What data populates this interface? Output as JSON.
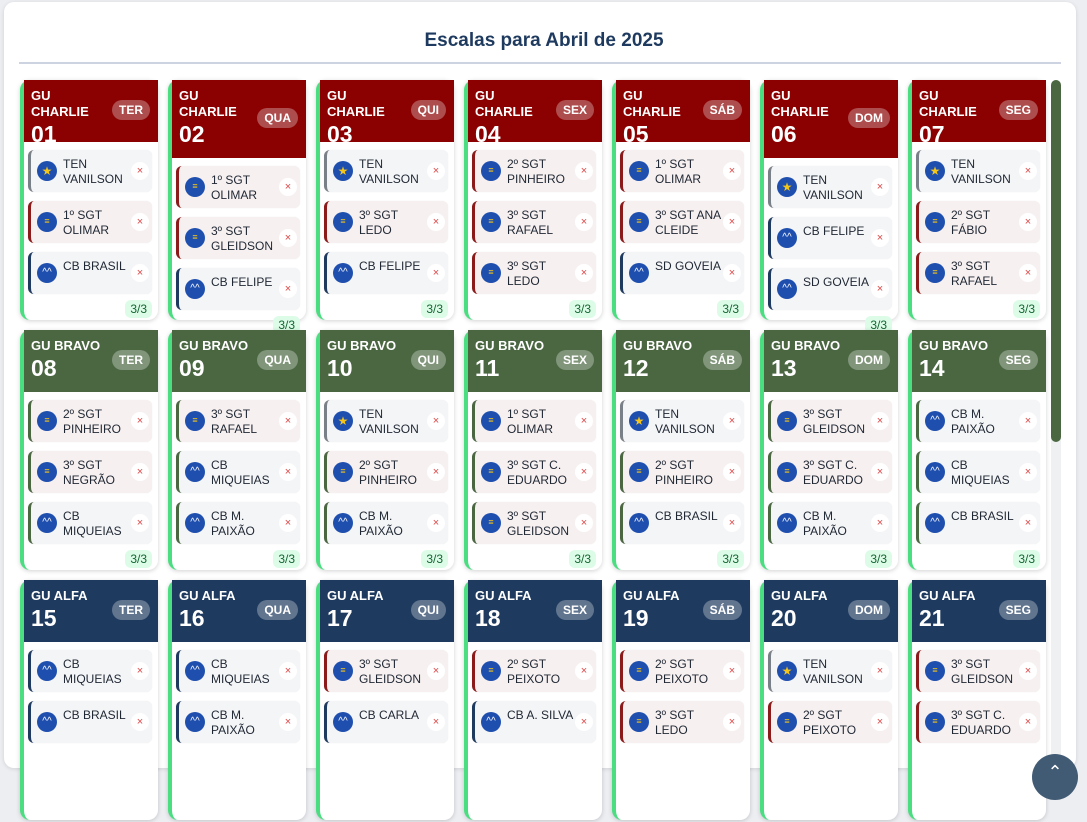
{
  "page_title": "Escalas para Abril de 2025",
  "weeks": [
    {
      "rowTop": 80,
      "days": [
        {
          "unit": "GU CHARLIE",
          "day": "01",
          "weekday": "TER",
          "tall": false,
          "count": "3/3",
          "entries": [
            {
              "name": "TEN VANILSON",
              "rank": "ten"
            },
            {
              "name": "1º SGT OLIMAR",
              "rank": "sgt"
            },
            {
              "name": "CB BRASIL",
              "rank": "cb"
            }
          ]
        },
        {
          "unit": "GU CHARLIE",
          "day": "02",
          "weekday": "QUA",
          "tall": true,
          "count": "3/3",
          "entries": [
            {
              "name": "1º SGT OLIMAR",
              "rank": "sgt"
            },
            {
              "name": "3º SGT GLEIDSON",
              "rank": "sgt"
            },
            {
              "name": "CB FELIPE",
              "rank": "cb"
            }
          ]
        },
        {
          "unit": "GU CHARLIE",
          "day": "03",
          "weekday": "QUI",
          "tall": false,
          "count": "3/3",
          "entries": [
            {
              "name": "TEN VANILSON",
              "rank": "ten"
            },
            {
              "name": "3º SGT LEDO",
              "rank": "sgt"
            },
            {
              "name": "CB FELIPE",
              "rank": "cb"
            }
          ]
        },
        {
          "unit": "GU CHARLIE",
          "day": "04",
          "weekday": "SEX",
          "tall": false,
          "count": "3/3",
          "entries": [
            {
              "name": "2º SGT PINHEIRO",
              "rank": "sgt"
            },
            {
              "name": "3º SGT RAFAEL",
              "rank": "sgt"
            },
            {
              "name": "3º SGT LEDO",
              "rank": "sgt"
            }
          ]
        },
        {
          "unit": "GU CHARLIE",
          "day": "05",
          "weekday": "SÁB",
          "tall": false,
          "count": "3/3",
          "entries": [
            {
              "name": "1º SGT OLIMAR",
              "rank": "sgt"
            },
            {
              "name": "3º SGT ANA CLEIDE",
              "rank": "sgt"
            },
            {
              "name": "SD GOVEIA",
              "rank": "cb"
            }
          ]
        },
        {
          "unit": "GU CHARLIE",
          "day": "06",
          "weekday": "DOM",
          "tall": true,
          "count": "3/3",
          "entries": [
            {
              "name": "TEN VANILSON",
              "rank": "ten"
            },
            {
              "name": "CB FELIPE",
              "rank": "cb"
            },
            {
              "name": "SD GOVEIA",
              "rank": "cb"
            }
          ]
        },
        {
          "unit": "GU CHARLIE",
          "day": "07",
          "weekday": "SEG",
          "tall": false,
          "count": "3/3",
          "entries": [
            {
              "name": "TEN VANILSON",
              "rank": "ten"
            },
            {
              "name": "2º SGT FÁBIO",
              "rank": "sgt"
            },
            {
              "name": "3º SGT RAFAEL",
              "rank": "sgt"
            }
          ]
        }
      ]
    },
    {
      "rowTop": 330,
      "days": [
        {
          "unit": "GU BRAVO",
          "day": "08",
          "weekday": "TER",
          "tall": false,
          "count": "3/3",
          "entries": [
            {
              "name": "2º SGT PINHEIRO",
              "rank": "sgt"
            },
            {
              "name": "3º SGT NEGRÃO",
              "rank": "sgt"
            },
            {
              "name": "CB MIQUEIAS",
              "rank": "cb"
            }
          ]
        },
        {
          "unit": "GU BRAVO",
          "day": "09",
          "weekday": "QUA",
          "tall": false,
          "count": "3/3",
          "entries": [
            {
              "name": "3º SGT RAFAEL",
              "rank": "sgt"
            },
            {
              "name": "CB MIQUEIAS",
              "rank": "cb"
            },
            {
              "name": "CB M. PAIXÃO",
              "rank": "cb"
            }
          ]
        },
        {
          "unit": "GU BRAVO",
          "day": "10",
          "weekday": "QUI",
          "tall": false,
          "count": "3/3",
          "entries": [
            {
              "name": "TEN VANILSON",
              "rank": "ten"
            },
            {
              "name": "2º SGT PINHEIRO",
              "rank": "sgt"
            },
            {
              "name": "CB M. PAIXÃO",
              "rank": "cb"
            }
          ]
        },
        {
          "unit": "GU BRAVO",
          "day": "11",
          "weekday": "SEX",
          "tall": false,
          "count": "3/3",
          "entries": [
            {
              "name": "1º SGT OLIMAR",
              "rank": "sgt"
            },
            {
              "name": "3º SGT C. EDUARDO",
              "rank": "sgt"
            },
            {
              "name": "3º SGT GLEIDSON",
              "rank": "sgt"
            }
          ]
        },
        {
          "unit": "GU BRAVO",
          "day": "12",
          "weekday": "SÁB",
          "tall": false,
          "count": "3/3",
          "entries": [
            {
              "name": "TEN VANILSON",
              "rank": "ten"
            },
            {
              "name": "2º SGT PINHEIRO",
              "rank": "sgt"
            },
            {
              "name": "CB BRASIL",
              "rank": "cb"
            }
          ]
        },
        {
          "unit": "GU BRAVO",
          "day": "13",
          "weekday": "DOM",
          "tall": false,
          "count": "3/3",
          "entries": [
            {
              "name": "3º SGT GLEIDSON",
              "rank": "sgt"
            },
            {
              "name": "3º SGT C. EDUARDO",
              "rank": "sgt"
            },
            {
              "name": "CB M. PAIXÃO",
              "rank": "cb"
            }
          ]
        },
        {
          "unit": "GU BRAVO",
          "day": "14",
          "weekday": "SEG",
          "tall": false,
          "count": "3/3",
          "entries": [
            {
              "name": "CB M. PAIXÃO",
              "rank": "cb"
            },
            {
              "name": "CB MIQUEIAS",
              "rank": "cb"
            },
            {
              "name": "CB BRASIL",
              "rank": "cb"
            }
          ]
        }
      ]
    },
    {
      "rowTop": 580,
      "days": [
        {
          "unit": "GU ALFA",
          "day": "15",
          "weekday": "TER",
          "tall": false,
          "count": "",
          "entries": [
            {
              "name": "CB MIQUEIAS",
              "rank": "cb"
            },
            {
              "name": "CB BRASIL",
              "rank": "cb"
            }
          ]
        },
        {
          "unit": "GU ALFA",
          "day": "16",
          "weekday": "QUA",
          "tall": false,
          "count": "",
          "entries": [
            {
              "name": "CB MIQUEIAS",
              "rank": "cb"
            },
            {
              "name": "CB M. PAIXÃO",
              "rank": "cb"
            }
          ]
        },
        {
          "unit": "GU ALFA",
          "day": "17",
          "weekday": "QUI",
          "tall": false,
          "count": "",
          "entries": [
            {
              "name": "3º SGT GLEIDSON",
              "rank": "sgt"
            },
            {
              "name": "CB CARLA",
              "rank": "cb"
            }
          ]
        },
        {
          "unit": "GU ALFA",
          "day": "18",
          "weekday": "SEX",
          "tall": false,
          "count": "",
          "entries": [
            {
              "name": "2º SGT PEIXOTO",
              "rank": "sgt"
            },
            {
              "name": "CB A. SILVA",
              "rank": "cb"
            }
          ]
        },
        {
          "unit": "GU ALFA",
          "day": "19",
          "weekday": "SÁB",
          "tall": false,
          "count": "",
          "entries": [
            {
              "name": "2º SGT PEIXOTO",
              "rank": "sgt"
            },
            {
              "name": "3º SGT LEDO",
              "rank": "sgt"
            }
          ]
        },
        {
          "unit": "GU ALFA",
          "day": "20",
          "weekday": "DOM",
          "tall": false,
          "count": "",
          "entries": [
            {
              "name": "TEN VANILSON",
              "rank": "ten"
            },
            {
              "name": "2º SGT PEIXOTO",
              "rank": "sgt"
            }
          ]
        },
        {
          "unit": "GU ALFA",
          "day": "21",
          "weekday": "SEG",
          "tall": false,
          "count": "",
          "entries": [
            {
              "name": "3º SGT GLEIDSON",
              "rank": "sgt"
            },
            {
              "name": "3º SGT C. EDUARDO",
              "rank": "sgt"
            }
          ]
        }
      ]
    }
  ],
  "remove_symbol": "×",
  "fab_symbol": "⌃",
  "icons": {
    "ten": "star-insignia-icon",
    "sgt": "sergeant-chevron-icon",
    "cb": "corporal-chevron-icon"
  },
  "colors": {
    "charlie": "#8b0000",
    "bravo": "#4a6741",
    "alfa": "#1e3a5f",
    "accent": "#4ade80",
    "remove": "#e04848"
  }
}
